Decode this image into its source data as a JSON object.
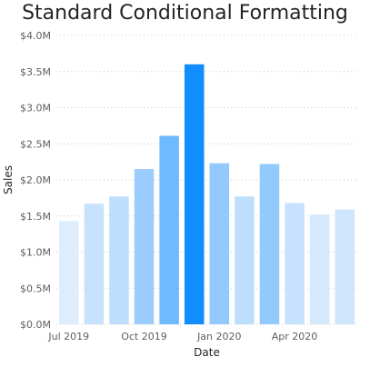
{
  "chart_data": {
    "type": "bar",
    "title": "Standard Conditional Formatting",
    "xlabel": "Date",
    "ylabel": "Sales",
    "ylim": [
      0,
      4000000
    ],
    "y_ticks": [
      0,
      500000,
      1000000,
      1500000,
      2000000,
      2500000,
      3000000,
      3500000,
      4000000
    ],
    "y_tick_labels": [
      "$0.0M",
      "$0.5M",
      "$1.0M",
      "$1.5M",
      "$2.0M",
      "$2.5M",
      "$3.0M",
      "$3.5M",
      "$4.0M"
    ],
    "categories": [
      "Jul 2019",
      "Aug 2019",
      "Sep 2019",
      "Oct 2019",
      "Nov 2019",
      "Dec 2019",
      "Jan 2020",
      "Feb 2020",
      "Mar 2020",
      "Apr 2020",
      "May 2020",
      "Jun 2020"
    ],
    "x_tick_labels": [
      {
        "index": 0,
        "label": "Jul 2019"
      },
      {
        "index": 3,
        "label": "Oct 2019"
      },
      {
        "index": 6,
        "label": "Jan 2020"
      },
      {
        "index": 9,
        "label": "Apr 2020"
      }
    ],
    "values": [
      1430000,
      1670000,
      1770000,
      2150000,
      2610000,
      3600000,
      2230000,
      1770000,
      2220000,
      1680000,
      1520000,
      1590000
    ],
    "color_scale": {
      "min_color": "#deedfc",
      "max_color": "#118dff"
    },
    "grid": {
      "horizontal": true,
      "style": "dotted"
    },
    "legend": "none"
  }
}
